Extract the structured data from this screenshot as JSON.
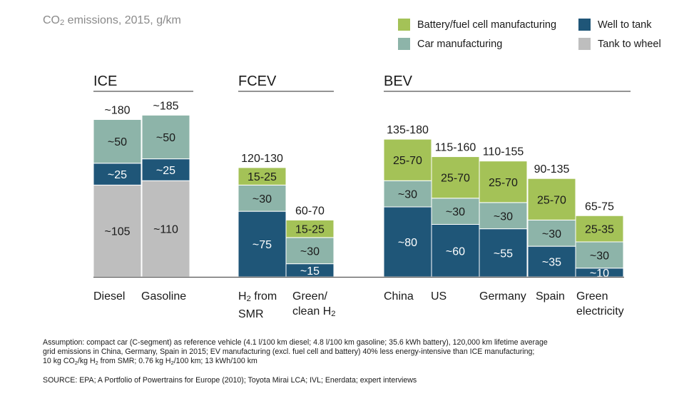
{
  "subtitle_parts": {
    "a": "CO",
    "sub": "2",
    "b": " emissions, 2015, g/km"
  },
  "legend": [
    {
      "name": "Battery/fuel cell manufacturing",
      "color": "#a4c257"
    },
    {
      "name": "Well to tank",
      "color": "#1f5678"
    },
    {
      "name": "Car manufacturing",
      "color": "#8db4a9"
    },
    {
      "name": "Tank to wheel",
      "color": "#bebebe"
    }
  ],
  "colors": {
    "battery": "#a4c257",
    "car": "#8db4a9",
    "well": "#1f5678",
    "tank": "#bebebe",
    "group_line": "#555555",
    "axis": "#555555"
  },
  "chart_data": {
    "type": "bar",
    "stacked": true,
    "groups": [
      "ICE",
      "FCEV",
      "BEV"
    ],
    "categories": [
      "Diesel",
      "Gasoline",
      "H2 from SMR",
      "Green/ clean H2",
      "China",
      "US",
      "Germany",
      "Spain",
      "Green electricity"
    ],
    "category_group": [
      "ICE",
      "ICE",
      "FCEV",
      "FCEV",
      "BEV",
      "BEV",
      "BEV",
      "BEV",
      "BEV"
    ],
    "series": [
      {
        "name": "Tank to wheel",
        "values": [
          105,
          110,
          0,
          0,
          0,
          0,
          0,
          0,
          0
        ],
        "labels": [
          "~105",
          "~110",
          "",
          "",
          "",
          "",
          "",
          "",
          ""
        ]
      },
      {
        "name": "Well to tank",
        "values": [
          25,
          25,
          75,
          15,
          80,
          60,
          55,
          35,
          10
        ],
        "labels": [
          "~25",
          "~25",
          "~75",
          "~15",
          "~80",
          "~60",
          "~55",
          "~35",
          "~10"
        ]
      },
      {
        "name": "Car manufacturing",
        "values": [
          50,
          50,
          30,
          30,
          30,
          30,
          30,
          30,
          30
        ],
        "labels": [
          "~50",
          "~50",
          "~30",
          "~30",
          "~30",
          "~30",
          "~30",
          "~30",
          "~30"
        ]
      },
      {
        "name": "Battery/fuel cell manufacturing",
        "values": [
          0,
          0,
          20,
          20,
          47.5,
          47.5,
          47.5,
          47.5,
          30
        ],
        "labels": [
          "",
          "",
          "15-25",
          "15-25",
          "25-70",
          "25-70",
          "25-70",
          "25-70",
          "25-35"
        ]
      }
    ],
    "totals": [
      "~180",
      "~185",
      "120-130",
      "60-70",
      "135-180",
      "115-160",
      "110-155",
      "90-135",
      "65-75"
    ],
    "ylim": [
      0,
      200
    ]
  },
  "x_labels": {
    "diesel": "Diesel",
    "gasoline": "Gasoline",
    "smr_a": "H",
    "smr_sub": "2",
    "smr_b": " from",
    "smr_line2": "SMR",
    "green_h2_line1": "Green/",
    "green_h2_a": "clean H",
    "green_h2_sub": "2",
    "china": "China",
    "us": "US",
    "germany": "Germany",
    "spain": "Spain",
    "green_elec_line1": "Green",
    "green_elec_line2": "electricity"
  },
  "footnote": {
    "line1": "Assumption: compact car (C-segment) as reference vehicle (4.1 l/100 km diesel; 4.8 l/100 km gasoline; 35.6 kWh battery), 120,000 km lifetime average",
    "line2": "grid emissions in China, Germany, Spain in 2015; EV manufacturing (excl. fuel cell and battery) 40% less energy-intensive than ICE manufacturing;",
    "line3_a": "10 kg CO",
    "line3_sub1": "2",
    "line3_b": "/kg H",
    "line3_sub2": "2",
    "line3_c": " from SMR; 0.76 kg H",
    "line3_sub3": "2",
    "line3_d": "/100 km; 13 kWh/100 km"
  },
  "source": "SOURCE: EPA; A Portfolio of Powertrains for Europe (2010); Toyota Mirai LCA; IVL; Enerdata; expert interviews"
}
